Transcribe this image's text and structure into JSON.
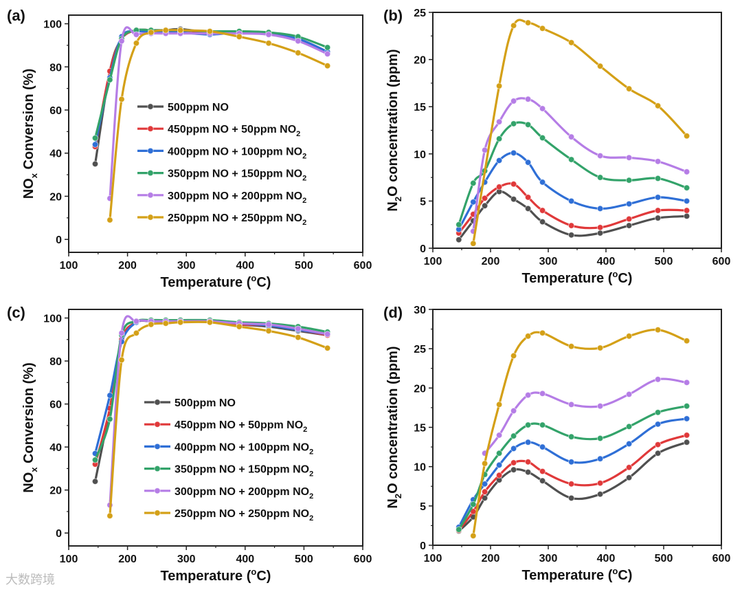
{
  "colors": [
    "#505050",
    "#e0393a",
    "#2f6fd6",
    "#33a36a",
    "#b57de6",
    "#d4a017"
  ],
  "legend": [
    {
      "text": "500ppm NO",
      "sub": ""
    },
    {
      "text": "450ppm NO + 50ppm NO",
      "sub": "2"
    },
    {
      "text": "400ppm NO + 100ppm NO",
      "sub": "2"
    },
    {
      "text": "350ppm NO + 150ppm NO",
      "sub": "2"
    },
    {
      "text": "300ppm NO + 200ppm NO",
      "sub": "2"
    },
    {
      "text": "250ppm NO + 250ppm NO",
      "sub": "2"
    }
  ],
  "watermark": "大数跨境",
  "chart_data": [
    {
      "panel": "(a)",
      "type": "line",
      "xlabel": {
        "pre": "Temperature (",
        "sup": "o",
        "post": "C)"
      },
      "ylabel": {
        "pre": "NO",
        "sub": "x",
        "post": " Conversion (%)"
      },
      "xlim": [
        100,
        600
      ],
      "ylim": [
        -6,
        104
      ],
      "xticks": [
        100,
        200,
        300,
        400,
        500,
        600
      ],
      "yticks": [
        0,
        20,
        40,
        60,
        80,
        100
      ],
      "legend_position": "center",
      "x": [
        145,
        170,
        190,
        215,
        240,
        265,
        290,
        340,
        390,
        440,
        490,
        540
      ],
      "series": [
        {
          "name": "500ppm NO",
          "values": [
            35,
            78,
            93,
            97,
            97,
            97,
            97.5,
            96,
            96,
            95.5,
            93,
            87
          ]
        },
        {
          "name": "450ppm NO + 50ppm NO2",
          "values": [
            43,
            78,
            93,
            97,
            97,
            97,
            97,
            96,
            96,
            95.5,
            93,
            87
          ]
        },
        {
          "name": "400ppm NO + 100ppm NO2",
          "values": [
            44,
            75,
            94,
            96.5,
            96,
            96,
            96,
            95,
            96,
            95,
            93,
            87
          ]
        },
        {
          "name": "350ppm NO + 150ppm NO2",
          "values": [
            47,
            74,
            93,
            97,
            97,
            97,
            97,
            96.5,
            96.5,
            96,
            94,
            89
          ]
        },
        {
          "name": "300ppm NO + 200ppm NO2",
          "values": [
            null,
            19,
            92,
            95,
            95.5,
            95.5,
            95.5,
            95.5,
            95.5,
            95,
            92,
            86
          ]
        },
        {
          "name": "250ppm NO + 250ppm NO2",
          "values": [
            null,
            9,
            65,
            91,
            96,
            97,
            97,
            96.5,
            94,
            91,
            86.5,
            80.5
          ]
        }
      ]
    },
    {
      "panel": "(b)",
      "type": "line",
      "xlabel": {
        "pre": "Temperature (",
        "sup": "o",
        "post": "C)"
      },
      "ylabel": {
        "pre": "N",
        "sub": "2",
        "post": "O concentration  (ppm)"
      },
      "xlim": [
        100,
        600
      ],
      "ylim": [
        0,
        25
      ],
      "xticks": [
        100,
        200,
        300,
        400,
        500,
        600
      ],
      "yticks": [
        0,
        5,
        10,
        15,
        20,
        25
      ],
      "x": [
        145,
        170,
        190,
        215,
        240,
        265,
        290,
        340,
        390,
        440,
        490,
        540
      ],
      "series": [
        {
          "name": "500ppm NO",
          "values": [
            0.9,
            2.9,
            4.5,
            6.0,
            5.2,
            4.2,
            2.8,
            1.4,
            1.6,
            2.4,
            3.2,
            3.4
          ]
        },
        {
          "name": "450ppm NO + 50ppm NO2",
          "values": [
            1.6,
            3.6,
            5.3,
            6.5,
            6.8,
            5.4,
            4.0,
            2.4,
            2.2,
            3.1,
            4.0,
            4.0
          ]
        },
        {
          "name": "400ppm NO + 100ppm NO2",
          "values": [
            2.0,
            4.9,
            7.0,
            9.3,
            10.1,
            9.1,
            7.0,
            5.0,
            4.2,
            4.7,
            5.4,
            5.0
          ]
        },
        {
          "name": "350ppm NO + 150ppm NO2",
          "values": [
            2.5,
            6.9,
            8.2,
            11.6,
            13.2,
            13.1,
            11.7,
            9.4,
            7.5,
            7.2,
            7.4,
            6.4
          ]
        },
        {
          "name": "300ppm NO + 200ppm NO2",
          "values": [
            null,
            1.8,
            10.4,
            13.4,
            15.6,
            15.8,
            14.8,
            11.8,
            9.8,
            9.6,
            9.2,
            8.1
          ]
        },
        {
          "name": "250ppm NO + 250ppm NO2",
          "values": [
            null,
            0.5,
            null,
            17.2,
            23.6,
            23.9,
            23.3,
            21.8,
            19.3,
            16.9,
            15.1,
            11.9
          ]
        }
      ]
    },
    {
      "panel": "(c)",
      "type": "line",
      "xlabel": {
        "pre": "Temperature (",
        "sup": "o",
        "post": "C)"
      },
      "ylabel": {
        "pre": "NO",
        "sub": "x",
        "post": " Conversion (%)"
      },
      "xlim": [
        100,
        600
      ],
      "ylim": [
        -6,
        104
      ],
      "xticks": [
        100,
        200,
        300,
        400,
        500,
        600
      ],
      "yticks": [
        0,
        20,
        40,
        60,
        80,
        100
      ],
      "legend_position": "center",
      "x": [
        145,
        170,
        190,
        215,
        240,
        265,
        290,
        340,
        390,
        440,
        490,
        540
      ],
      "series": [
        {
          "name": "500ppm NO",
          "values": [
            24,
            58,
            89,
            98,
            98.5,
            98.5,
            99,
            98.5,
            97,
            96,
            94,
            92
          ]
        },
        {
          "name": "450ppm NO + 50ppm NO2",
          "values": [
            32,
            58,
            90,
            98,
            98.5,
            98.5,
            98.5,
            98.5,
            97,
            96.5,
            94.5,
            92
          ]
        },
        {
          "name": "400ppm NO + 100ppm NO2",
          "values": [
            37,
            64,
            89,
            98,
            98.5,
            98.5,
            98.5,
            98.5,
            97.5,
            96.5,
            94.5,
            92.5
          ]
        },
        {
          "name": "350ppm NO + 150ppm NO2",
          "values": [
            34,
            53,
            92,
            98.5,
            99,
            99,
            99,
            99,
            98,
            97.5,
            96,
            93.5
          ]
        },
        {
          "name": "300ppm NO + 200ppm NO2",
          "values": [
            null,
            13,
            93,
            98.5,
            98.5,
            98.5,
            98.5,
            98.5,
            97.5,
            97,
            95,
            92.5
          ]
        },
        {
          "name": "250ppm NO + 250ppm NO2",
          "values": [
            null,
            8,
            80.5,
            93,
            97,
            97.5,
            98,
            98,
            96,
            94,
            91,
            86
          ]
        }
      ]
    },
    {
      "panel": "(d)",
      "type": "line",
      "xlabel": {
        "pre": "Temperature (",
        "sup": "o",
        "post": "C)"
      },
      "ylabel": {
        "pre": "N",
        "sub": "2",
        "post": "O concentration (ppm)"
      },
      "xlim": [
        100,
        600
      ],
      "ylim": [
        0,
        30
      ],
      "xticks": [
        100,
        200,
        300,
        400,
        500,
        600
      ],
      "yticks": [
        0,
        5,
        10,
        15,
        20,
        25,
        30
      ],
      "x": [
        145,
        170,
        190,
        215,
        240,
        265,
        290,
        340,
        390,
        440,
        490,
        540
      ],
      "series": [
        {
          "name": "500ppm NO",
          "values": [
            1.8,
            3.6,
            6.0,
            8.3,
            9.6,
            9.3,
            8.2,
            6.0,
            6.5,
            8.6,
            11.7,
            13.1
          ]
        },
        {
          "name": "450ppm NO + 50ppm NO2",
          "values": [
            1.9,
            4.3,
            6.8,
            8.9,
            10.5,
            10.6,
            9.4,
            7.8,
            7.9,
            9.9,
            12.8,
            14.0
          ]
        },
        {
          "name": "400ppm NO + 100ppm NO2",
          "values": [
            2.3,
            5.8,
            7.8,
            10.2,
            12.3,
            13.1,
            12.5,
            10.6,
            11.0,
            12.9,
            15.4,
            16.1
          ]
        },
        {
          "name": "350ppm NO + 150ppm NO2",
          "values": [
            2.0,
            5.2,
            9.0,
            11.7,
            13.9,
            15.3,
            15.3,
            13.8,
            13.6,
            15.1,
            16.9,
            17.7
          ]
        },
        {
          "name": "300ppm NO + 200ppm NO2",
          "values": [
            null,
            null,
            11.7,
            14.0,
            17.1,
            19.1,
            19.3,
            17.9,
            17.7,
            19.2,
            21.1,
            20.7
          ]
        },
        {
          "name": "250ppm NO + 250ppm NO2",
          "values": [
            null,
            1.2,
            10.4,
            17.9,
            24.1,
            26.6,
            27.0,
            25.3,
            25.1,
            26.6,
            27.4,
            26.0
          ]
        }
      ]
    }
  ]
}
